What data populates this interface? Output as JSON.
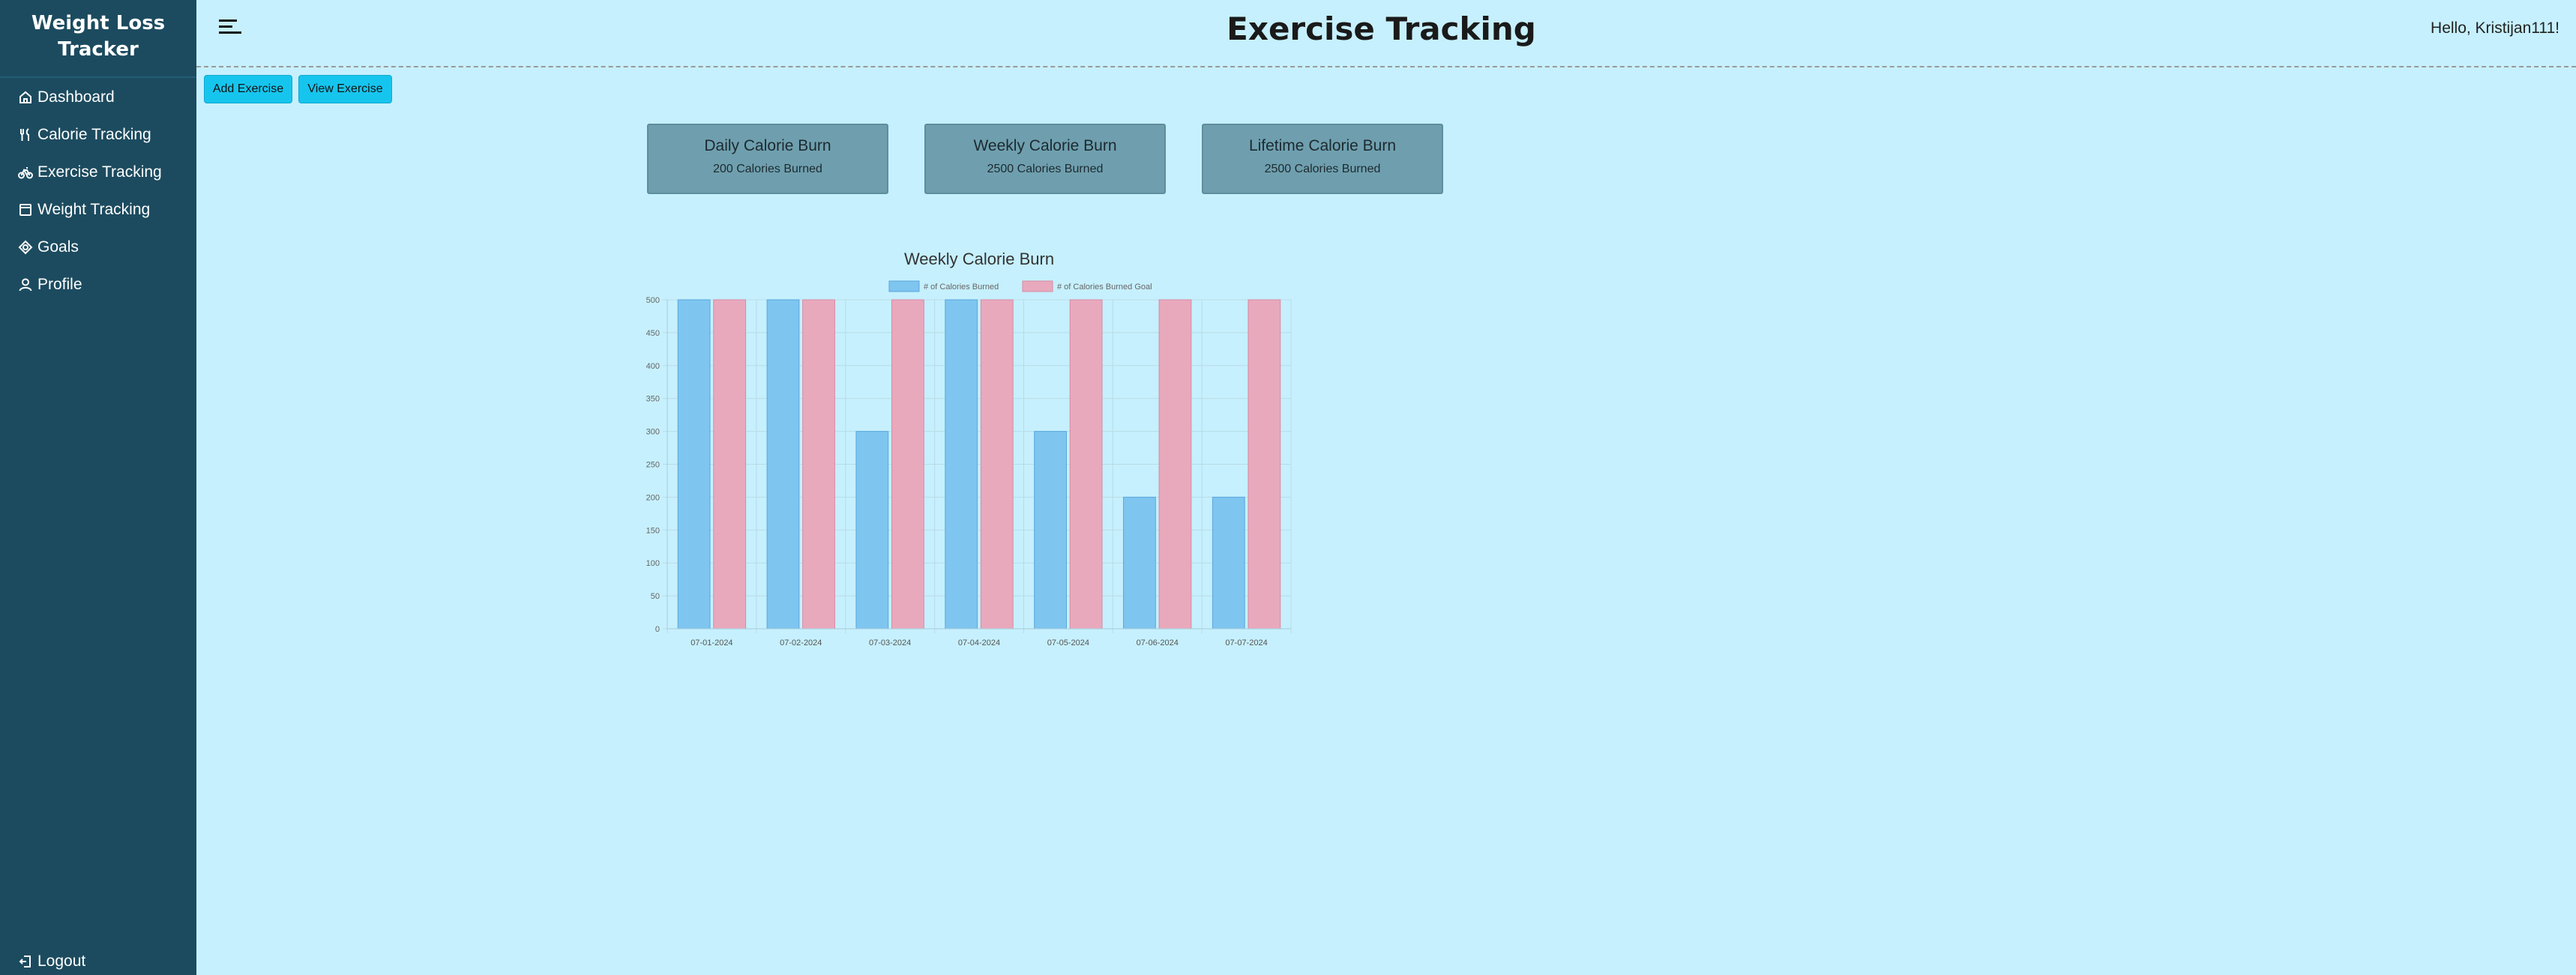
{
  "sidebar": {
    "brand": [
      "Weight Loss",
      "Tracker"
    ],
    "items": [
      {
        "label": "Dashboard",
        "icon": "home-icon"
      },
      {
        "label": "Calorie Tracking",
        "icon": "utensils-icon"
      },
      {
        "label": "Exercise Tracking",
        "icon": "bicycle-icon"
      },
      {
        "label": "Weight Tracking",
        "icon": "scale-icon"
      },
      {
        "label": "Goals",
        "icon": "target-icon"
      },
      {
        "label": "Profile",
        "icon": "user-icon"
      }
    ],
    "logout": "Logout"
  },
  "header": {
    "title": "Exercise Tracking",
    "greeting": "Hello, Kristijan111!"
  },
  "actions": {
    "add": "Add Exercise",
    "view": "View Exercise"
  },
  "cards": [
    {
      "title": "Daily Calorie Burn",
      "value": "200 Calories Burned"
    },
    {
      "title": "Weekly Calorie Burn",
      "value": "2500 Calories Burned"
    },
    {
      "title": "Lifetime Calorie Burn",
      "value": "2500 Calories Burned"
    }
  ],
  "colors": {
    "sidebar": "#1c4b5f",
    "background": "#c6f0fd",
    "button": "#16c5ee",
    "burned": "#7ec5f0",
    "goal": "#e8a9bd"
  },
  "chart_data": {
    "type": "bar",
    "title": "Weekly Calorie Burn",
    "categories": [
      "07-01-2024",
      "07-02-2024",
      "07-03-2024",
      "07-04-2024",
      "07-05-2024",
      "07-06-2024",
      "07-07-2024"
    ],
    "series": [
      {
        "name": "# of Calories Burned",
        "values": [
          500,
          500,
          300,
          500,
          300,
          200,
          200
        ]
      },
      {
        "name": "# of Calories Burned Goal",
        "values": [
          500,
          500,
          500,
          500,
          500,
          500,
          500
        ]
      }
    ],
    "ylim": [
      0,
      500
    ],
    "yticks": [
      0,
      50,
      100,
      150,
      200,
      250,
      300,
      350,
      400,
      450,
      500
    ],
    "grid": true,
    "legend": "top"
  }
}
